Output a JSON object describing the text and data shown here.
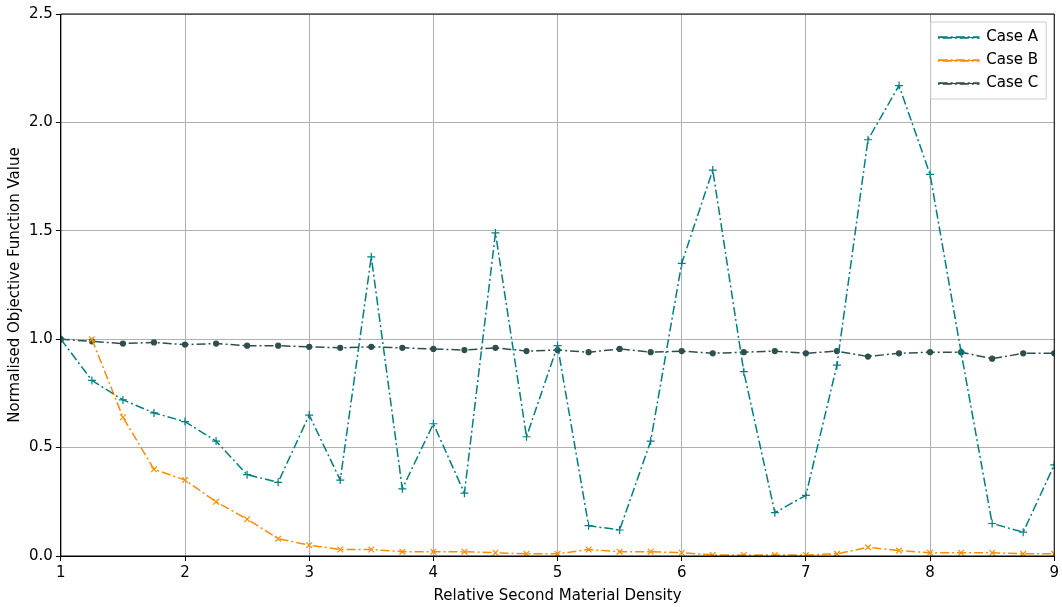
{
  "chart_data": {
    "type": "line",
    "xlabel": "Relative Second Material Density",
    "ylabel": "Normalised Objective Function Value",
    "x": [
      1,
      1.25,
      1.5,
      1.75,
      2,
      2.25,
      2.5,
      2.75,
      3,
      3.25,
      3.5,
      3.75,
      4,
      4.25,
      4.5,
      4.75,
      5,
      5.25,
      5.5,
      5.75,
      6,
      6.25,
      6.5,
      6.75,
      7,
      7.25,
      7.5,
      7.75,
      8,
      8.25,
      8.5,
      8.75,
      9
    ],
    "xlim": [
      1,
      9
    ],
    "xticks": [
      1,
      2,
      3,
      4,
      5,
      6,
      7,
      8,
      9
    ],
    "ylim": [
      0,
      2.5
    ],
    "yticks": [
      {
        "value": 0,
        "label": "0.0"
      },
      {
        "value": 0.5,
        "label": "0.5"
      },
      {
        "value": 1,
        "label": "1.0"
      },
      {
        "value": 1.5,
        "label": "1.5"
      },
      {
        "value": 2,
        "label": "2.0"
      },
      {
        "value": 2.5,
        "label": "2.5"
      }
    ],
    "grid": true,
    "legend": "top right",
    "line_style": "dashdot",
    "series": [
      {
        "name": "Case A",
        "color": "#008080",
        "marker": "cross",
        "values": [
          1.0,
          0.81,
          0.72,
          0.66,
          0.62,
          0.53,
          0.375,
          0.34,
          0.65,
          0.35,
          1.38,
          0.31,
          0.61,
          0.29,
          1.49,
          0.55,
          0.97,
          0.14,
          0.12,
          0.53,
          1.35,
          1.78,
          0.85,
          0.2,
          0.28,
          0.88,
          1.92,
          2.17,
          1.76,
          0.94,
          0.15,
          0.11,
          0.42
        ]
      },
      {
        "name": "Case B",
        "color": "#ff8c00",
        "marker": "x",
        "values": [
          null,
          1.0,
          0.64,
          0.4,
          0.35,
          0.25,
          0.17,
          0.08,
          0.05,
          0.03,
          0.03,
          0.02,
          0.02,
          0.02,
          0.015,
          0.01,
          0.01,
          0.03,
          0.02,
          0.02,
          0.015,
          0.005,
          0.005,
          0.005,
          0.005,
          0.01,
          0.04,
          0.025,
          0.015,
          0.015,
          0.015,
          0.01,
          0.01
        ]
      },
      {
        "name": "Case C",
        "color": "#2f4f4f",
        "marker": "circle",
        "values": [
          1.0,
          0.99,
          0.98,
          0.985,
          0.975,
          0.98,
          0.97,
          0.97,
          0.965,
          0.96,
          0.965,
          0.96,
          0.955,
          0.95,
          0.96,
          0.945,
          0.95,
          0.94,
          0.955,
          0.94,
          0.945,
          0.935,
          0.94,
          0.945,
          0.935,
          0.945,
          0.92,
          0.935,
          0.94,
          0.94,
          0.91,
          0.935,
          0.935
        ]
      }
    ]
  }
}
